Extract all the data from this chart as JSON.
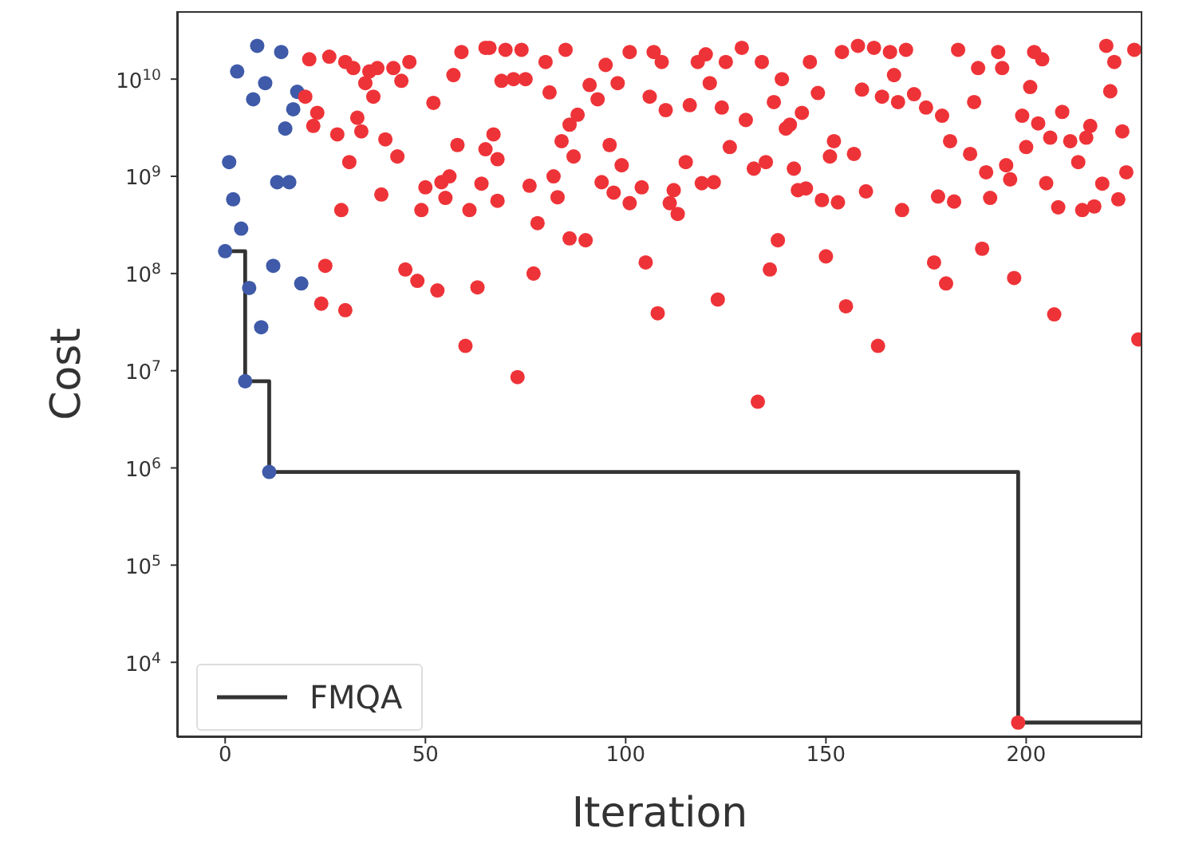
{
  "chart_data": {
    "type": "scatter",
    "xlabel": "Iteration",
    "ylabel": "Cost",
    "log": "y",
    "grid": false,
    "legend": "bottom left",
    "marker": "circle",
    "xlim": [
      -12,
      229
    ],
    "xticks": [
      0,
      50,
      100,
      150,
      200
    ],
    "ylim": [
      1700,
      50000000000.0
    ],
    "yticks": [
      {
        "value": 10000.0,
        "label": "10$^{4}$"
      },
      {
        "value": 100000.0,
        "label": "10$^{5}$"
      },
      {
        "value": 1000000.0,
        "label": "10$^{6}$"
      },
      {
        "value": 10000000.0,
        "label": "10$^{7}$"
      },
      {
        "value": 100000000.0,
        "label": "10$^{8}$"
      },
      {
        "value": 1000000000.0,
        "label": "10$^{9}$"
      },
      {
        "value": 10000000000.0,
        "label": "10$^{10}$"
      }
    ],
    "series": [
      {
        "color": "#3f5aa8",
        "x": [
          0,
          1,
          2,
          3,
          4,
          5,
          6,
          7,
          8,
          9,
          10,
          11,
          12,
          13,
          14,
          15,
          16,
          17,
          18,
          19
        ],
        "values": [
          170000000.0,
          1400000000.0,
          580000000.0,
          12000000000.0,
          290000000.0,
          7800000.0,
          71000000.0,
          6200000000.0,
          22000000000.0,
          28000000.0,
          9100000000.0,
          910000.0,
          120000000.0,
          870000000.0,
          19000000000.0,
          3100000000.0,
          870000000.0,
          4900000000.0,
          7400000000.0,
          79000000.0
        ]
      },
      {
        "color": "#ee3338",
        "x": [
          21,
          26,
          30,
          32,
          36,
          38,
          42,
          46,
          44,
          37,
          35,
          20,
          23,
          22,
          28,
          33,
          34,
          40,
          43,
          31,
          39,
          29,
          25,
          24,
          30,
          45,
          48,
          53,
          63,
          60,
          49,
          50,
          54,
          56,
          55,
          61,
          64,
          58,
          57,
          52,
          59,
          65,
          66,
          70,
          74,
          80,
          85,
          72,
          69,
          75,
          81,
          67,
          65,
          68,
          68,
          76,
          82,
          83,
          78,
          86,
          90,
          77,
          73,
          84,
          86,
          88,
          87,
          91,
          93,
          95,
          98,
          101,
          107,
          109,
          106,
          110,
          116,
          124,
          130,
          121,
          118,
          120,
          125,
          129,
          134,
          139,
          137,
          141,
          96,
          99,
          94,
          97,
          101,
          104,
          112,
          111,
          113,
          115,
          119,
          122,
          126,
          132,
          135,
          142,
          143,
          138,
          136,
          123,
          108,
          105,
          133,
          146,
          154,
          158,
          162,
          166,
          170,
          167,
          148,
          159,
          164,
          168,
          172,
          175,
          179,
          144,
          140,
          152,
          151,
          157,
          145,
          149,
          153,
          160,
          169,
          178,
          182,
          181,
          186,
          190,
          195,
          196,
          191,
          183,
          188,
          193,
          194,
          187,
          201,
          199,
          203,
          200,
          206,
          211,
          209,
          202,
          204,
          213,
          205,
          208,
          214,
          217,
          219,
          223,
          225,
          224,
          216,
          215,
          221,
          220,
          222,
          227,
          150,
          155,
          163,
          177,
          180,
          189,
          197,
          207,
          228,
          198
        ],
        "values": [
          16000000000.0,
          17000000000.0,
          15000000000.0,
          13000000000.0,
          12000000000.0,
          13000000000.0,
          13000000000.0,
          15000000000.0,
          9600000000.0,
          6600000000.0,
          9100000000.0,
          6600000000.0,
          4500000000.0,
          3300000000.0,
          2700000000.0,
          4000000000.0,
          2900000000.0,
          2400000000.0,
          1600000000.0,
          1400000000.0,
          650000000.0,
          450000000.0,
          120000000.0,
          49000000.0,
          42000000.0,
          110000000.0,
          84000000.0,
          67000000.0,
          72000000.0,
          18000000.0,
          450000000.0,
          770000000.0,
          870000000.0,
          1000000000.0,
          600000000.0,
          450000000.0,
          840000000.0,
          2100000000.0,
          11000000000.0,
          5700000000.0,
          19000000000.0,
          21000000000.0,
          21000000000.0,
          20000000000.0,
          20000000000.0,
          15000000000.0,
          20000000000.0,
          10000000000.0,
          9600000000.0,
          10000000000.0,
          7300000000.0,
          2700000000.0,
          1900000000.0,
          1500000000.0,
          560000000.0,
          800000000.0,
          1000000000.0,
          610000000.0,
          330000000.0,
          230000000.0,
          220000000.0,
          100000000.0,
          8600000.0,
          2300000000.0,
          3400000000.0,
          4300000000.0,
          1600000000.0,
          8700000000.0,
          6200000000.0,
          14000000000.0,
          9100000000.0,
          19000000000.0,
          19000000000.0,
          15000000000.0,
          6600000000.0,
          4800000000.0,
          5400000000.0,
          5100000000.0,
          3800000000.0,
          9100000000.0,
          15000000000.0,
          18000000000.0,
          15000000000.0,
          21000000000.0,
          15000000000.0,
          10000000000.0,
          5800000000.0,
          3400000000.0,
          2100000000.0,
          1300000000.0,
          870000000.0,
          680000000.0,
          530000000.0,
          770000000.0,
          720000000.0,
          530000000.0,
          410000000.0,
          1400000000.0,
          850000000.0,
          870000000.0,
          2000000000.0,
          1200000000.0,
          1400000000.0,
          1200000000.0,
          720000000.0,
          220000000.0,
          110000000.0,
          54000000.0,
          39000000.0,
          130000000.0,
          4800000.0,
          15000000000.0,
          19000000000.0,
          22000000000.0,
          21000000000.0,
          19000000000.0,
          20000000000.0,
          11000000000.0,
          7200000000.0,
          7800000000.0,
          6600000000.0,
          5800000000.0,
          7000000000.0,
          5100000000.0,
          4200000000.0,
          4500000000.0,
          3100000000.0,
          2300000000.0,
          1600000000.0,
          1700000000.0,
          750000000.0,
          570000000.0,
          540000000.0,
          700000000.0,
          450000000.0,
          620000000.0,
          550000000.0,
          2300000000.0,
          1700000000.0,
          1100000000.0,
          1300000000.0,
          930000000.0,
          600000000.0,
          20000000000.0,
          13000000000.0,
          19000000000.0,
          13000000000.0,
          5800000000.0,
          8300000000.0,
          4200000000.0,
          3500000000.0,
          2000000000.0,
          2500000000.0,
          2300000000.0,
          4600000000.0,
          19000000000.0,
          16000000000.0,
          1400000000.0,
          850000000.0,
          480000000.0,
          450000000.0,
          490000000.0,
          840000000.0,
          580000000.0,
          1100000000.0,
          2900000000.0,
          3300000000.0,
          2500000000.0,
          7500000000.0,
          22000000000.0,
          15000000000.0,
          20000000000.0,
          150000000.0,
          46000000.0,
          18000000.0,
          130000000.0,
          79000000.0,
          180000000.0,
          90000000.0,
          38000000.0,
          21000000.0,
          2400.0
        ]
      },
      {
        "type": "step",
        "name": "FMQA",
        "color": "#333333",
        "marker": "none",
        "line_style": "solid",
        "x": [
          0,
          5,
          11,
          198,
          229
        ],
        "values": [
          170000000.0,
          7800000.0,
          910000.0,
          2400.0,
          2400.0
        ]
      }
    ]
  }
}
